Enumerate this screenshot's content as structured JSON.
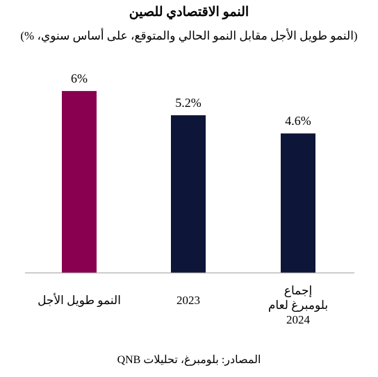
{
  "chart_data": {
    "type": "bar",
    "title": "النمو الاقتصادي للصين",
    "subtitle": "(النمو طويل الأجل مقابل النمو الحالي والمتوقع، على أساس سنوي، %)",
    "categories": [
      [
        "النمو طويل الأجل"
      ],
      [
        "2023"
      ],
      [
        "إجماع",
        "بلومبرغ لعام",
        "2024"
      ]
    ],
    "values": [
      6,
      5.2,
      4.6
    ],
    "value_labels": [
      "6%",
      "5.2%",
      "4.6%"
    ],
    "colors": [
      "#8A0050",
      "#0D1538",
      "#0D1538"
    ],
    "axis_color": "#999999",
    "ylim": [
      0,
      6.3
    ]
  },
  "source": "المصادر: بلومبرغ، تحليلات QNB"
}
